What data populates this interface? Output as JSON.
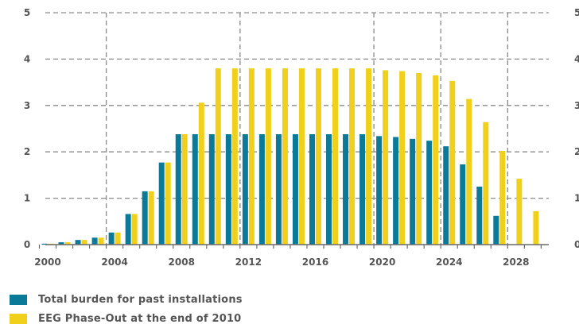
{
  "chart_data": {
    "type": "bar",
    "x": [
      2000,
      2001,
      2002,
      2003,
      2004,
      2005,
      2006,
      2007,
      2008,
      2009,
      2010,
      2011,
      2012,
      2013,
      2014,
      2015,
      2016,
      2017,
      2018,
      2019,
      2020,
      2021,
      2022,
      2023,
      2024,
      2025,
      2026,
      2027,
      2028,
      2029
    ],
    "series": [
      {
        "name": "Total burden for past installations",
        "color": "#0a7a98",
        "values": [
          0.02,
          0.05,
          0.1,
          0.15,
          0.26,
          0.66,
          1.15,
          1.77,
          2.38,
          2.38,
          2.38,
          2.38,
          2.38,
          2.38,
          2.38,
          2.38,
          2.38,
          2.38,
          2.38,
          2.38,
          2.34,
          2.32,
          2.28,
          2.24,
          2.12,
          1.73,
          1.25,
          0.62,
          0,
          0
        ]
      },
      {
        "name": "EEG Phase-Out at the end of 2010",
        "color": "#f0d01a",
        "values": [
          0.02,
          0.05,
          0.1,
          0.15,
          0.26,
          0.66,
          1.15,
          1.77,
          2.38,
          3.06,
          3.8,
          3.8,
          3.8,
          3.8,
          3.8,
          3.8,
          3.8,
          3.8,
          3.8,
          3.8,
          3.76,
          3.74,
          3.7,
          3.65,
          3.53,
          3.14,
          2.64,
          2.02,
          1.42,
          0.72
        ]
      }
    ],
    "x_tick_labels": [
      "2000",
      "2004",
      "2008",
      "2012",
      "2016",
      "2020",
      "2024",
      "2028"
    ],
    "y_tick_labels": [
      "0",
      "1",
      "2",
      "3",
      "4",
      "5"
    ],
    "right_y_tick_labels": [
      "0",
      "1",
      "2",
      "3",
      "4",
      "5"
    ],
    "ylim": [
      0,
      5
    ],
    "dashed_vertical_lines_after_years": [
      2003,
      2011,
      2019,
      2023,
      2027
    ],
    "grid": "horizontal dashed",
    "legend_position": "bottom-left"
  }
}
